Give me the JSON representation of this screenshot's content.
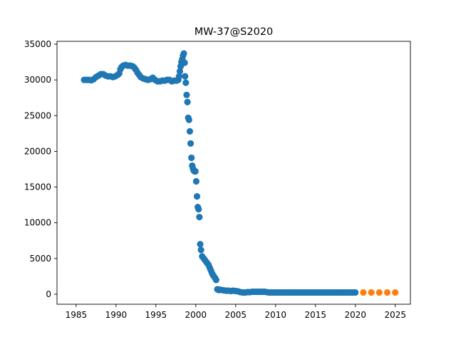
{
  "chart_data": {
    "type": "scatter",
    "title": "MW-37@S2020",
    "xlabel": "",
    "ylabel": "",
    "xlim": [
      1982.6,
      2026.9
    ],
    "ylim": [
      -1400,
      35400
    ],
    "xticks": [
      1985,
      1990,
      1995,
      2000,
      2005,
      2010,
      2015,
      2020,
      2025
    ],
    "yticks": [
      0,
      5000,
      10000,
      15000,
      20000,
      25000,
      30000,
      35000
    ],
    "grid": false,
    "legend": "none",
    "series": [
      {
        "color": "#1f77b4",
        "points": [
          [
            1986.0,
            30000
          ],
          [
            1986.3,
            30000
          ],
          [
            1986.6,
            30000
          ],
          [
            1986.9,
            29950
          ],
          [
            1987.2,
            30100
          ],
          [
            1987.5,
            30400
          ],
          [
            1987.8,
            30600
          ],
          [
            1988.1,
            30800
          ],
          [
            1988.4,
            30800
          ],
          [
            1988.7,
            30600
          ],
          [
            1989.0,
            30500
          ],
          [
            1989.3,
            30500
          ],
          [
            1989.6,
            30400
          ],
          [
            1989.9,
            30500
          ],
          [
            1990.2,
            30700
          ],
          [
            1990.4,
            30900
          ],
          [
            1990.55,
            31500
          ],
          [
            1990.7,
            31800
          ],
          [
            1990.9,
            32000
          ],
          [
            1991.2,
            32100
          ],
          [
            1991.5,
            32000
          ],
          [
            1991.8,
            32000
          ],
          [
            1992.1,
            31900
          ],
          [
            1992.3,
            31700
          ],
          [
            1992.5,
            31400
          ],
          [
            1992.7,
            31000
          ],
          [
            1992.9,
            30700
          ],
          [
            1993.1,
            30400
          ],
          [
            1993.4,
            30200
          ],
          [
            1993.7,
            30100
          ],
          [
            1994.0,
            30000
          ],
          [
            1994.3,
            30100
          ],
          [
            1994.6,
            30300
          ],
          [
            1994.9,
            30000
          ],
          [
            1995.2,
            29800
          ],
          [
            1995.5,
            29800
          ],
          [
            1995.8,
            29900
          ],
          [
            1996.1,
            29900
          ],
          [
            1996.4,
            30000
          ],
          [
            1996.7,
            30000
          ],
          [
            1997.0,
            29800
          ],
          [
            1997.3,
            29900
          ],
          [
            1997.6,
            29900
          ],
          [
            1997.8,
            30000
          ],
          [
            1997.9,
            30500
          ],
          [
            1998.0,
            31200
          ],
          [
            1998.1,
            31900
          ],
          [
            1998.2,
            32500
          ],
          [
            1998.3,
            32900
          ],
          [
            1998.4,
            33400
          ],
          [
            1998.5,
            33700
          ],
          [
            1998.6,
            32400
          ],
          [
            1998.65,
            30500
          ],
          [
            1998.75,
            29600
          ],
          [
            1998.85,
            27900
          ],
          [
            1998.95,
            26900
          ],
          [
            1999.05,
            24700
          ],
          [
            1999.15,
            24400
          ],
          [
            1999.25,
            22800
          ],
          [
            1999.35,
            21100
          ],
          [
            1999.45,
            19100
          ],
          [
            1999.55,
            18000
          ],
          [
            1999.65,
            17600
          ],
          [
            1999.75,
            17300
          ],
          [
            1999.85,
            17200
          ],
          [
            1999.95,
            17200
          ],
          [
            2000.05,
            15800
          ],
          [
            2000.15,
            13700
          ],
          [
            2000.25,
            12200
          ],
          [
            2000.35,
            11900
          ],
          [
            2000.45,
            10800
          ],
          [
            2000.55,
            7000
          ],
          [
            2000.65,
            6200
          ],
          [
            2000.8,
            5300
          ],
          [
            2001.0,
            5000
          ],
          [
            2001.2,
            4700
          ],
          [
            2001.4,
            4400
          ],
          [
            2001.6,
            4100
          ],
          [
            2001.75,
            3700
          ],
          [
            2001.9,
            3300
          ],
          [
            2002.05,
            2900
          ],
          [
            2002.2,
            2600
          ],
          [
            2002.4,
            2300
          ],
          [
            2002.55,
            2000
          ],
          [
            2002.7,
            700
          ],
          [
            2002.85,
            600
          ],
          [
            2003.0,
            650
          ],
          [
            2003.2,
            600
          ],
          [
            2003.5,
            550
          ],
          [
            2003.8,
            500
          ],
          [
            2004.1,
            500
          ],
          [
            2004.4,
            450
          ],
          [
            2004.7,
            500
          ],
          [
            2005.0,
            450
          ],
          [
            2005.3,
            400
          ],
          [
            2005.6,
            300
          ],
          [
            2005.9,
            250
          ],
          [
            2006.2,
            250
          ],
          [
            2006.5,
            300
          ],
          [
            2006.8,
            300
          ],
          [
            2007.1,
            350
          ],
          [
            2007.4,
            350
          ],
          [
            2007.7,
            350
          ],
          [
            2008.0,
            350
          ],
          [
            2008.3,
            350
          ],
          [
            2008.6,
            350
          ],
          [
            2008.9,
            300
          ],
          [
            2009.2,
            250
          ],
          [
            2009.5,
            250
          ],
          [
            2009.8,
            250
          ],
          [
            2010.1,
            250
          ],
          [
            2010.4,
            250
          ],
          [
            2010.7,
            250
          ],
          [
            2011.0,
            250
          ],
          [
            2011.3,
            250
          ],
          [
            2011.6,
            250
          ],
          [
            2011.9,
            250
          ],
          [
            2012.2,
            250
          ],
          [
            2012.5,
            250
          ],
          [
            2012.8,
            250
          ],
          [
            2013.1,
            250
          ],
          [
            2013.4,
            250
          ],
          [
            2013.7,
            250
          ],
          [
            2014.0,
            250
          ],
          [
            2014.3,
            250
          ],
          [
            2014.6,
            250
          ],
          [
            2014.9,
            250
          ],
          [
            2015.2,
            250
          ],
          [
            2015.5,
            250
          ],
          [
            2015.8,
            250
          ],
          [
            2016.1,
            250
          ],
          [
            2016.4,
            250
          ],
          [
            2016.7,
            250
          ],
          [
            2017.0,
            250
          ],
          [
            2017.3,
            250
          ],
          [
            2017.6,
            250
          ],
          [
            2017.9,
            250
          ],
          [
            2018.2,
            250
          ],
          [
            2018.5,
            250
          ],
          [
            2018.8,
            250
          ],
          [
            2019.1,
            250
          ],
          [
            2019.4,
            250
          ],
          [
            2019.7,
            250
          ],
          [
            2020.0,
            250
          ]
        ]
      },
      {
        "color": "#ff7f0e",
        "points": [
          [
            2021.0,
            250
          ],
          [
            2022.0,
            250
          ],
          [
            2023.0,
            250
          ],
          [
            2024.0,
            250
          ],
          [
            2025.0,
            250
          ]
        ]
      }
    ]
  }
}
